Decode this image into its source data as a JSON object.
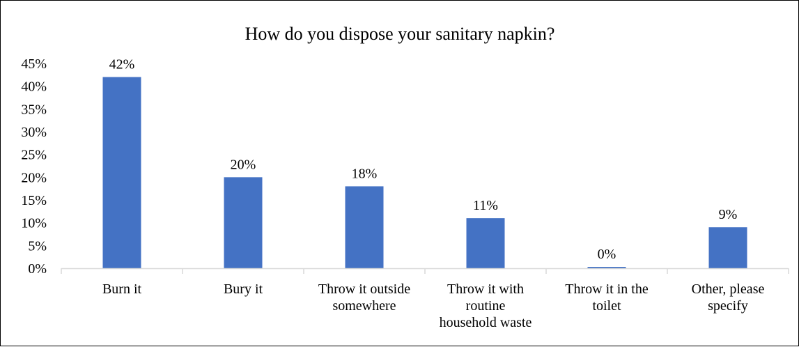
{
  "chart_data": {
    "type": "bar",
    "title": "How do you dispose your sanitary napkin?",
    "xlabel": "",
    "ylabel": "",
    "categories": [
      [
        "Burn it"
      ],
      [
        "Bury it"
      ],
      [
        "Throw it outside",
        "somewhere"
      ],
      [
        "Throw it with",
        "routine",
        "household waste"
      ],
      [
        "Throw it in the",
        "toilet"
      ],
      [
        "Other, please",
        "specify"
      ]
    ],
    "values": [
      42,
      20,
      18,
      11,
      0.3,
      9
    ],
    "data_labels": [
      "42%",
      "20%",
      "18%",
      "11%",
      "0%",
      "9%"
    ],
    "ylim": [
      0,
      45
    ],
    "yticks": [
      0,
      5,
      10,
      15,
      20,
      25,
      30,
      35,
      40,
      45
    ],
    "ytick_labels": [
      "0%",
      "5%",
      "10%",
      "15%",
      "20%",
      "25%",
      "30%",
      "35%",
      "40%",
      "45%"
    ],
    "grid": false,
    "legend": "none",
    "bar_color": "#4472c4",
    "axis_color": "#d9d9d9"
  }
}
